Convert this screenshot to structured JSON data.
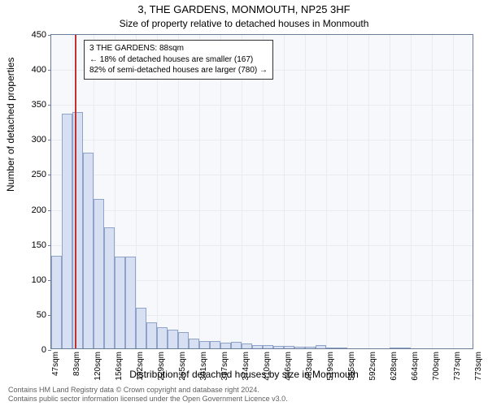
{
  "title": "3, THE GARDENS, MONMOUTH, NP25 3HF",
  "subtitle": "Size of property relative to detached houses in Monmouth",
  "yaxis_label": "Number of detached properties",
  "xaxis_label": "Distribution of detached houses by size in Monmouth",
  "footer_line1": "Contains HM Land Registry data © Crown copyright and database right 2024.",
  "footer_line2": "Contains public sector information licensed under the Open Government Licence v3.0.",
  "chart": {
    "type": "bar",
    "background_color": "#f6f8fc",
    "grid_color": "#e8ebf0",
    "border_color": "#6b7d9b",
    "bar_fill": "#d6e0f2",
    "bar_stroke": "#8fa2c7",
    "marker_color": "#c23030",
    "marker_x_value": 88,
    "text_color": "#222222",
    "tick_fontsize": 11,
    "xtick_fontsize": 10,
    "title_fontsize": 13,
    "subtitle_fontsize": 12,
    "ylim": [
      0,
      450
    ],
    "ytick_step": 50,
    "x_start": 47,
    "x_step_label": 36.3,
    "x_labels": [
      "47sqm",
      "83sqm",
      "120sqm",
      "156sqm",
      "192sqm",
      "229sqm",
      "265sqm",
      "301sqm",
      "337sqm",
      "374sqm",
      "410sqm",
      "446sqm",
      "483sqm",
      "519sqm",
      "555sqm",
      "592sqm",
      "628sqm",
      "664sqm",
      "700sqm",
      "737sqm",
      "773sqm"
    ],
    "bar_x_step": 18.15,
    "bars": [
      132,
      335,
      337,
      280,
      213,
      173,
      131,
      131,
      58,
      37,
      30,
      27,
      23,
      14,
      11,
      10,
      8,
      9,
      7,
      5,
      5,
      3,
      3,
      2,
      2,
      5,
      1,
      1,
      0,
      0,
      0,
      0,
      1,
      1,
      0,
      0,
      0,
      0,
      0,
      0
    ]
  },
  "annotation": {
    "line1": "3 THE GARDENS: 88sqm",
    "line2": "← 18% of detached houses are smaller (167)",
    "line3": "82% of semi-detached houses are larger (780) →"
  }
}
